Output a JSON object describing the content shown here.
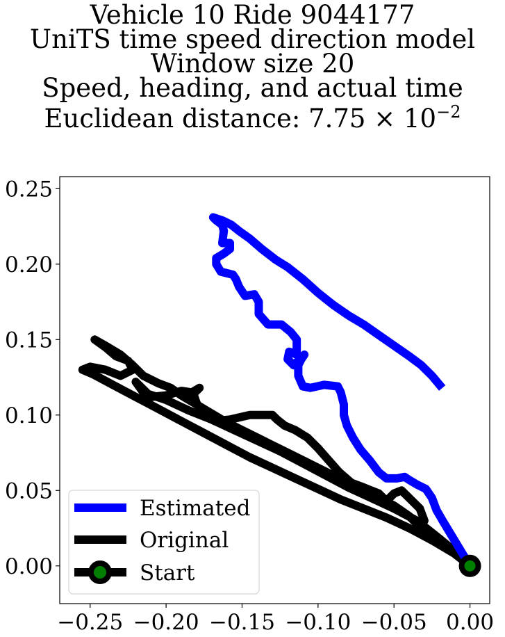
{
  "title_lines": [
    "Vehicle 10 Ride 9044177",
    "UniTS time speed direction model",
    "Window size 20",
    "Speed, heading, and actual time",
    "Euclidean distance: 7.75 × 10"
  ],
  "title_exponent": "−2",
  "chart_data": {
    "type": "line",
    "title": "Vehicle 10 Ride 9044177 / UniTS time speed direction model / Window size 20 / Speed, heading, and actual time / Euclidean distance: 7.75 × 10^-2",
    "xlabel": "",
    "ylabel": "",
    "xlim": [
      -0.27,
      0.013
    ],
    "ylim": [
      -0.025,
      0.258
    ],
    "x_ticks": [
      -0.25,
      -0.2,
      -0.15,
      -0.1,
      -0.05,
      0.0
    ],
    "x_tick_labels": [
      "−0.25",
      "−0.20",
      "−0.15",
      "−0.10",
      "−0.05",
      "0.00"
    ],
    "y_ticks": [
      0.0,
      0.05,
      0.1,
      0.15,
      0.2,
      0.25
    ],
    "y_tick_labels": [
      "0.00",
      "0.05",
      "0.10",
      "0.15",
      "0.20",
      "0.25"
    ],
    "grid": false,
    "legend_position": "lower-left",
    "series": [
      {
        "name": "Estimated",
        "color": "#0000ff",
        "points": [
          [
            0.0,
            0.0
          ],
          [
            -0.006,
            0.01
          ],
          [
            -0.012,
            0.02
          ],
          [
            -0.018,
            0.03
          ],
          [
            -0.022,
            0.037
          ],
          [
            -0.025,
            0.045
          ],
          [
            -0.029,
            0.051
          ],
          [
            -0.035,
            0.054
          ],
          [
            -0.04,
            0.057
          ],
          [
            -0.043,
            0.059
          ],
          [
            -0.048,
            0.058
          ],
          [
            -0.055,
            0.058
          ],
          [
            -0.06,
            0.062
          ],
          [
            -0.066,
            0.07
          ],
          [
            -0.072,
            0.077
          ],
          [
            -0.077,
            0.085
          ],
          [
            -0.081,
            0.093
          ],
          [
            -0.083,
            0.1
          ],
          [
            -0.083,
            0.107
          ],
          [
            -0.085,
            0.115
          ],
          [
            -0.087,
            0.119
          ],
          [
            -0.096,
            0.12
          ],
          [
            -0.105,
            0.118
          ],
          [
            -0.11,
            0.119
          ],
          [
            -0.113,
            0.126
          ],
          [
            -0.113,
            0.133
          ],
          [
            -0.111,
            0.137
          ],
          [
            -0.109,
            0.14
          ],
          [
            -0.112,
            0.137
          ],
          [
            -0.116,
            0.133
          ],
          [
            -0.12,
            0.137
          ],
          [
            -0.119,
            0.142
          ],
          [
            -0.114,
            0.14
          ],
          [
            -0.114,
            0.15
          ],
          [
            -0.118,
            0.155
          ],
          [
            -0.124,
            0.16
          ],
          [
            -0.133,
            0.16
          ],
          [
            -0.139,
            0.167
          ],
          [
            -0.139,
            0.175
          ],
          [
            -0.142,
            0.18
          ],
          [
            -0.148,
            0.179
          ],
          [
            -0.152,
            0.185
          ],
          [
            -0.154,
            0.19
          ],
          [
            -0.156,
            0.193
          ],
          [
            -0.164,
            0.195
          ],
          [
            -0.167,
            0.2
          ],
          [
            -0.167,
            0.204
          ],
          [
            -0.162,
            0.207
          ],
          [
            -0.158,
            0.21
          ],
          [
            -0.158,
            0.214
          ],
          [
            -0.163,
            0.214
          ],
          [
            -0.162,
            0.222
          ],
          [
            -0.163,
            0.226
          ],
          [
            -0.167,
            0.229
          ],
          [
            -0.169,
            0.231
          ],
          [
            -0.163,
            0.229
          ],
          [
            -0.157,
            0.226
          ],
          [
            -0.152,
            0.222
          ],
          [
            -0.145,
            0.217
          ],
          [
            -0.137,
            0.21
          ],
          [
            -0.128,
            0.203
          ],
          [
            -0.12,
            0.198
          ],
          [
            -0.11,
            0.19
          ],
          [
            -0.1,
            0.181
          ],
          [
            -0.09,
            0.173
          ],
          [
            -0.08,
            0.166
          ],
          [
            -0.07,
            0.16
          ],
          [
            -0.06,
            0.153
          ],
          [
            -0.05,
            0.146
          ],
          [
            -0.04,
            0.139
          ],
          [
            -0.032,
            0.133
          ],
          [
            -0.025,
            0.126
          ],
          [
            -0.02,
            0.12
          ]
        ]
      },
      {
        "name": "Original",
        "color": "#000000",
        "points": [
          [
            0.0,
            0.0
          ],
          [
            -0.01,
            0.008
          ],
          [
            -0.025,
            0.017
          ],
          [
            -0.04,
            0.025
          ],
          [
            -0.055,
            0.032
          ],
          [
            -0.07,
            0.038
          ],
          [
            -0.085,
            0.044
          ],
          [
            -0.1,
            0.051
          ],
          [
            -0.115,
            0.058
          ],
          [
            -0.13,
            0.065
          ],
          [
            -0.145,
            0.072
          ],
          [
            -0.16,
            0.08
          ],
          [
            -0.175,
            0.088
          ],
          [
            -0.19,
            0.096
          ],
          [
            -0.205,
            0.104
          ],
          [
            -0.22,
            0.112
          ],
          [
            -0.235,
            0.12
          ],
          [
            -0.248,
            0.127
          ],
          [
            -0.255,
            0.13
          ],
          [
            -0.25,
            0.132
          ],
          [
            -0.24,
            0.13
          ],
          [
            -0.23,
            0.126
          ],
          [
            -0.222,
            0.13
          ],
          [
            -0.225,
            0.136
          ],
          [
            -0.233,
            0.139
          ],
          [
            -0.24,
            0.145
          ],
          [
            -0.247,
            0.15
          ],
          [
            -0.24,
            0.146
          ],
          [
            -0.23,
            0.14
          ],
          [
            -0.222,
            0.133
          ],
          [
            -0.215,
            0.126
          ],
          [
            -0.205,
            0.121
          ],
          [
            -0.197,
            0.118
          ],
          [
            -0.19,
            0.113
          ],
          [
            -0.18,
            0.107
          ],
          [
            -0.17,
            0.101
          ],
          [
            -0.16,
            0.095
          ],
          [
            -0.15,
            0.09
          ],
          [
            -0.14,
            0.085
          ],
          [
            -0.13,
            0.08
          ],
          [
            -0.12,
            0.075
          ],
          [
            -0.11,
            0.07
          ],
          [
            -0.1,
            0.065
          ],
          [
            -0.09,
            0.06
          ],
          [
            -0.08,
            0.055
          ],
          [
            -0.07,
            0.05
          ],
          [
            -0.06,
            0.045
          ],
          [
            -0.05,
            0.04
          ],
          [
            -0.04,
            0.033
          ],
          [
            -0.033,
            0.026
          ],
          [
            -0.03,
            0.03
          ],
          [
            -0.033,
            0.038
          ],
          [
            -0.04,
            0.045
          ],
          [
            -0.045,
            0.05
          ],
          [
            -0.05,
            0.048
          ],
          [
            -0.055,
            0.043
          ],
          [
            -0.06,
            0.048
          ],
          [
            -0.065,
            0.05
          ],
          [
            -0.07,
            0.052
          ],
          [
            -0.078,
            0.055
          ],
          [
            -0.086,
            0.062
          ],
          [
            -0.093,
            0.07
          ],
          [
            -0.1,
            0.078
          ],
          [
            -0.107,
            0.085
          ],
          [
            -0.115,
            0.09
          ],
          [
            -0.122,
            0.093
          ],
          [
            -0.127,
            0.097
          ],
          [
            -0.13,
            0.1
          ],
          [
            -0.135,
            0.1
          ],
          [
            -0.145,
            0.1
          ],
          [
            -0.158,
            0.097
          ],
          [
            -0.168,
            0.096
          ],
          [
            -0.175,
            0.1
          ],
          [
            -0.18,
            0.108
          ],
          [
            -0.182,
            0.114
          ],
          [
            -0.178,
            0.118
          ],
          [
            -0.183,
            0.115
          ],
          [
            -0.19,
            0.116
          ],
          [
            -0.2,
            0.113
          ],
          [
            -0.21,
            0.112
          ],
          [
            -0.215,
            0.117
          ],
          [
            -0.22,
            0.122
          ],
          [
            -0.215,
            0.115
          ],
          [
            -0.2,
            0.11
          ],
          [
            -0.185,
            0.103
          ],
          [
            -0.17,
            0.097
          ],
          [
            -0.155,
            0.09
          ],
          [
            -0.14,
            0.083
          ],
          [
            -0.125,
            0.076
          ],
          [
            -0.11,
            0.068
          ],
          [
            -0.095,
            0.06
          ],
          [
            -0.08,
            0.052
          ],
          [
            -0.065,
            0.045
          ],
          [
            -0.05,
            0.038
          ],
          [
            -0.035,
            0.03
          ],
          [
            -0.02,
            0.018
          ],
          [
            -0.008,
            0.008
          ],
          [
            0.0,
            0.0
          ]
        ]
      },
      {
        "name": "Start",
        "marker_fill": "#008000",
        "marker_edge": "#000000",
        "points": [
          [
            0.0,
            0.0
          ]
        ]
      }
    ]
  }
}
